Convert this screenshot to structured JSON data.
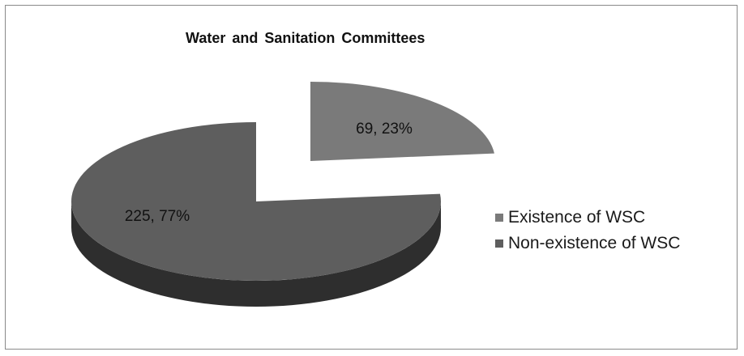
{
  "chart_data": {
    "type": "pie",
    "title": "Water  and Sanitation Committees",
    "style": "3d-exploded",
    "slices": [
      {
        "name": "Existence of WSC",
        "value": 69,
        "percent": "23%",
        "label": "69, 23%",
        "color": "#7a7a7a",
        "side_color": "#3c3c3c"
      },
      {
        "name": "Non-existence of WSC",
        "value": 225,
        "percent": "77%",
        "label": "225, 77%",
        "color": "#5e5e5e",
        "side_color": "#2e2e2e"
      }
    ],
    "legend_position": "right"
  }
}
